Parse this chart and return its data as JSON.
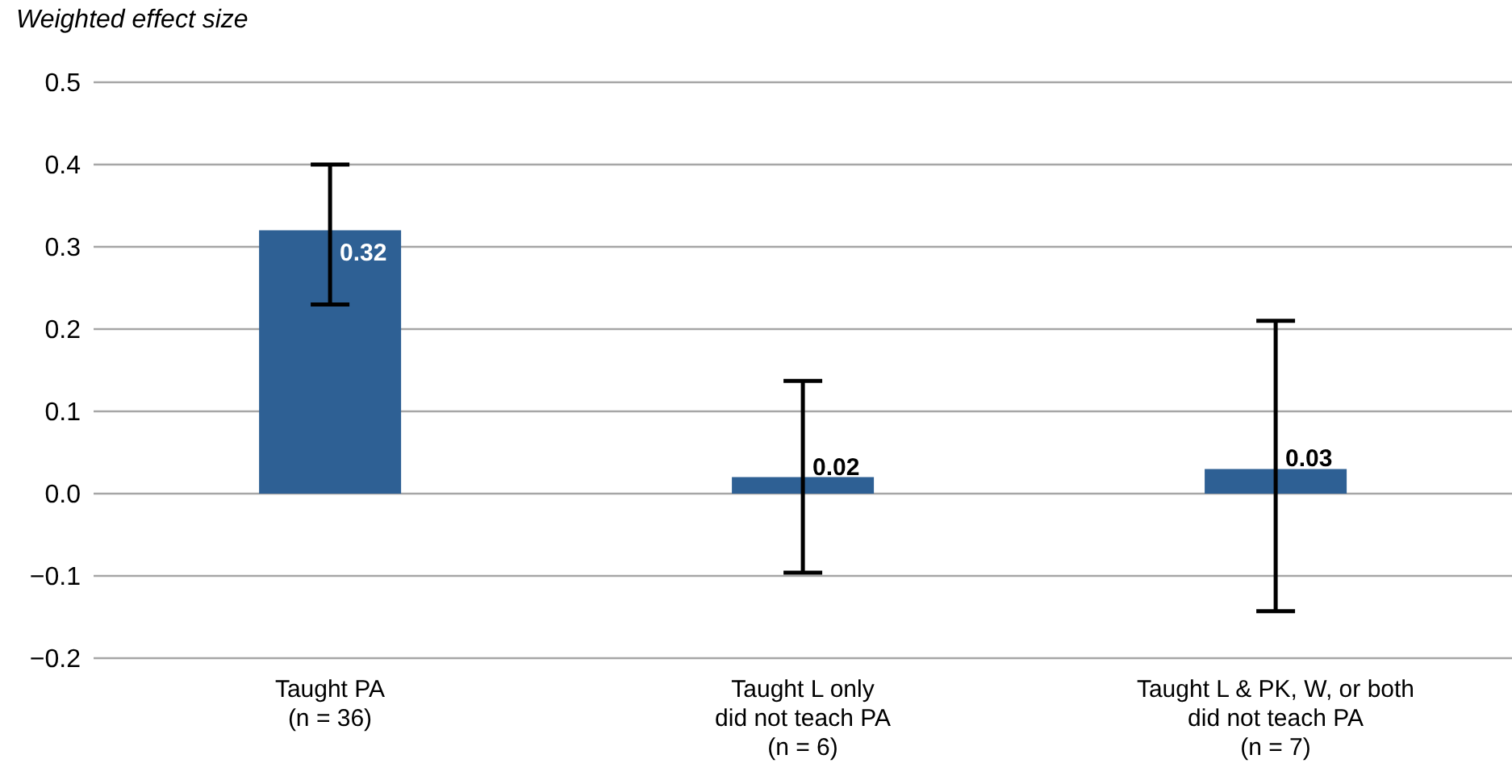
{
  "chart_data": {
    "type": "bar",
    "ylabel": "Weighted effect size",
    "categories": [
      "Taught PA\n(n = 36)",
      "Taught L only\ndid not teach PA\n(n = 6)",
      "Taught L & PK, W, or both\ndid not teach PA\n(n = 7)"
    ],
    "values": [
      0.32,
      0.02,
      0.03
    ],
    "color": "#2e6094",
    "errors": [
      [
        0.23,
        0.4
      ],
      [
        -0.096,
        0.137
      ],
      [
        -0.143,
        0.21
      ]
    ],
    "data_labels": true,
    "ylim": [
      -0.2,
      0.5
    ],
    "yticks": [
      {
        "value": -0.2,
        "label": "−0.2"
      },
      {
        "value": -0.1,
        "label": "−0.1"
      },
      {
        "value": 0,
        "label": "0.0"
      },
      {
        "value": 0.1,
        "label": "0.1"
      },
      {
        "value": 0.2,
        "label": "0.2"
      },
      {
        "value": 0.3,
        "label": "0.3"
      },
      {
        "value": 0.4,
        "label": "0.4"
      },
      {
        "value": 0.5,
        "label": "0.5"
      }
    ],
    "grid": "y",
    "legend": false
  }
}
